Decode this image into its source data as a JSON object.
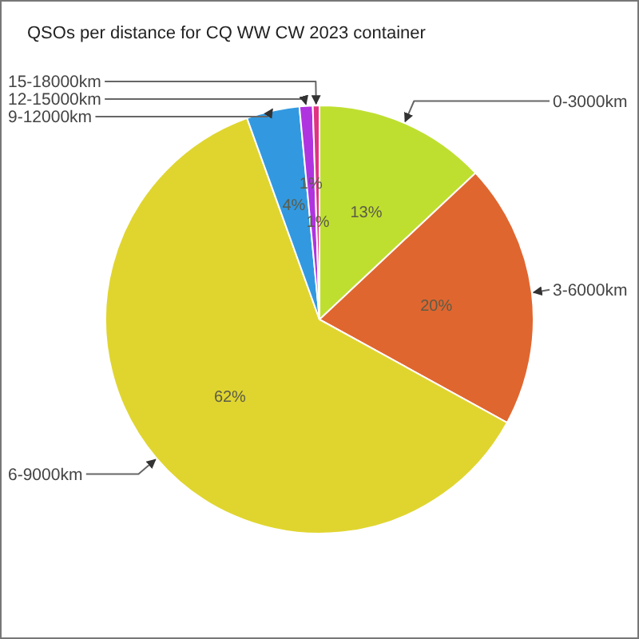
{
  "chart_data": {
    "type": "pie",
    "title": "QSOs per distance for CQ WW CW 2023 container",
    "categories": [
      "0-3000km",
      "3-6000km",
      "6-9000km",
      "9-12000km",
      "12-15000km",
      "15-18000km"
    ],
    "values": [
      13,
      20,
      61.5,
      4,
      1,
      0.5
    ],
    "colors": [
      "#bfdf30",
      "#e0662f",
      "#e0d52f",
      "#3299e0",
      "#b033e0",
      "#e03383"
    ],
    "value_labels": [
      "13%",
      "20%",
      "62%",
      "4%",
      "1%",
      "1%"
    ]
  }
}
